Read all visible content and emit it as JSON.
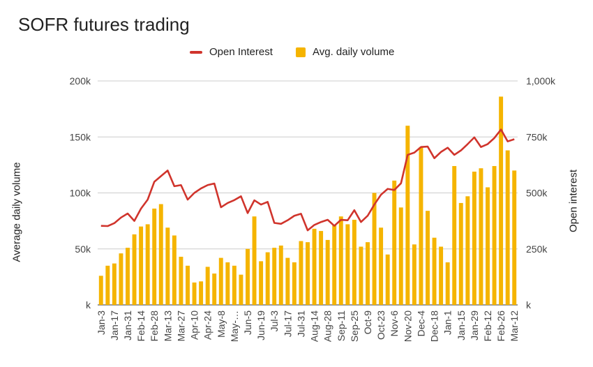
{
  "chart_data": {
    "type": "bar",
    "title": "SOFR futures trading",
    "ylabel_left": "Average daily volume",
    "ylabel_right": "Open interest",
    "ylim_left": [
      0,
      200000
    ],
    "ylim_right": [
      0,
      1000000
    ],
    "yticks_left": [
      "k",
      "50k",
      "100k",
      "150k",
      "200k"
    ],
    "yticks_right": [
      "k",
      "250k",
      "500k",
      "750k",
      "1,000k"
    ],
    "grid": true,
    "legend_position": "top",
    "x_tick_labels": [
      "Jan-3",
      "Jan-17",
      "Jan-31",
      "Feb-14",
      "Feb-28",
      "Mar-13",
      "Mar-27",
      "Apr-10",
      "Apr-24",
      "May-8",
      "May-…",
      "Jun-5",
      "Jun-19",
      "Jul-3",
      "Jul-17",
      "Jul-31",
      "Aug-14",
      "Aug-28",
      "Sep-11",
      "Sep-25",
      "Oct-9",
      "Oct-23",
      "Nov-6",
      "Nov-20",
      "Dec-4",
      "Dec-18",
      "Jan-1",
      "Jan-15",
      "Jan-29",
      "Feb-12",
      "Feb-26",
      "Mar-12"
    ],
    "series": [
      {
        "name": "Avg. daily volume",
        "type": "bar",
        "axis": "left",
        "color": "#f5b400",
        "values": [
          26000,
          35000,
          37000,
          46000,
          51000,
          63000,
          70000,
          72000,
          86000,
          90000,
          69000,
          62000,
          43000,
          35000,
          20000,
          21000,
          34000,
          28000,
          42000,
          38000,
          35000,
          27000,
          50000,
          79000,
          39000,
          47000,
          51000,
          53000,
          42000,
          38000,
          57000,
          56000,
          68000,
          66000,
          58000,
          71000,
          79000,
          72000,
          76000,
          52000,
          56000,
          100000,
          69000,
          45000,
          111000,
          87000,
          160000,
          54000,
          141000,
          84000,
          60000,
          52000,
          38000,
          124000,
          91000,
          97000,
          119000,
          122000,
          105000,
          124000,
          186000,
          138000,
          120000
        ]
      },
      {
        "name": "Open Interest",
        "type": "line",
        "axis": "right",
        "color": "#d0342c",
        "values": [
          353000,
          352000,
          365000,
          390000,
          408000,
          375000,
          430000,
          470000,
          550000,
          575000,
          600000,
          530000,
          535000,
          470000,
          500000,
          520000,
          535000,
          542000,
          436000,
          455000,
          468000,
          485000,
          410000,
          467000,
          448000,
          460000,
          366000,
          362000,
          378000,
          398000,
          407000,
          333000,
          357000,
          370000,
          380000,
          353000,
          380000,
          378000,
          423000,
          370000,
          398000,
          448000,
          492000,
          518000,
          513000,
          543000,
          670000,
          680000,
          705000,
          707000,
          655000,
          683000,
          702000,
          670000,
          690000,
          718000,
          748000,
          705000,
          718000,
          745000,
          783000,
          730000,
          740000
        ]
      }
    ]
  }
}
